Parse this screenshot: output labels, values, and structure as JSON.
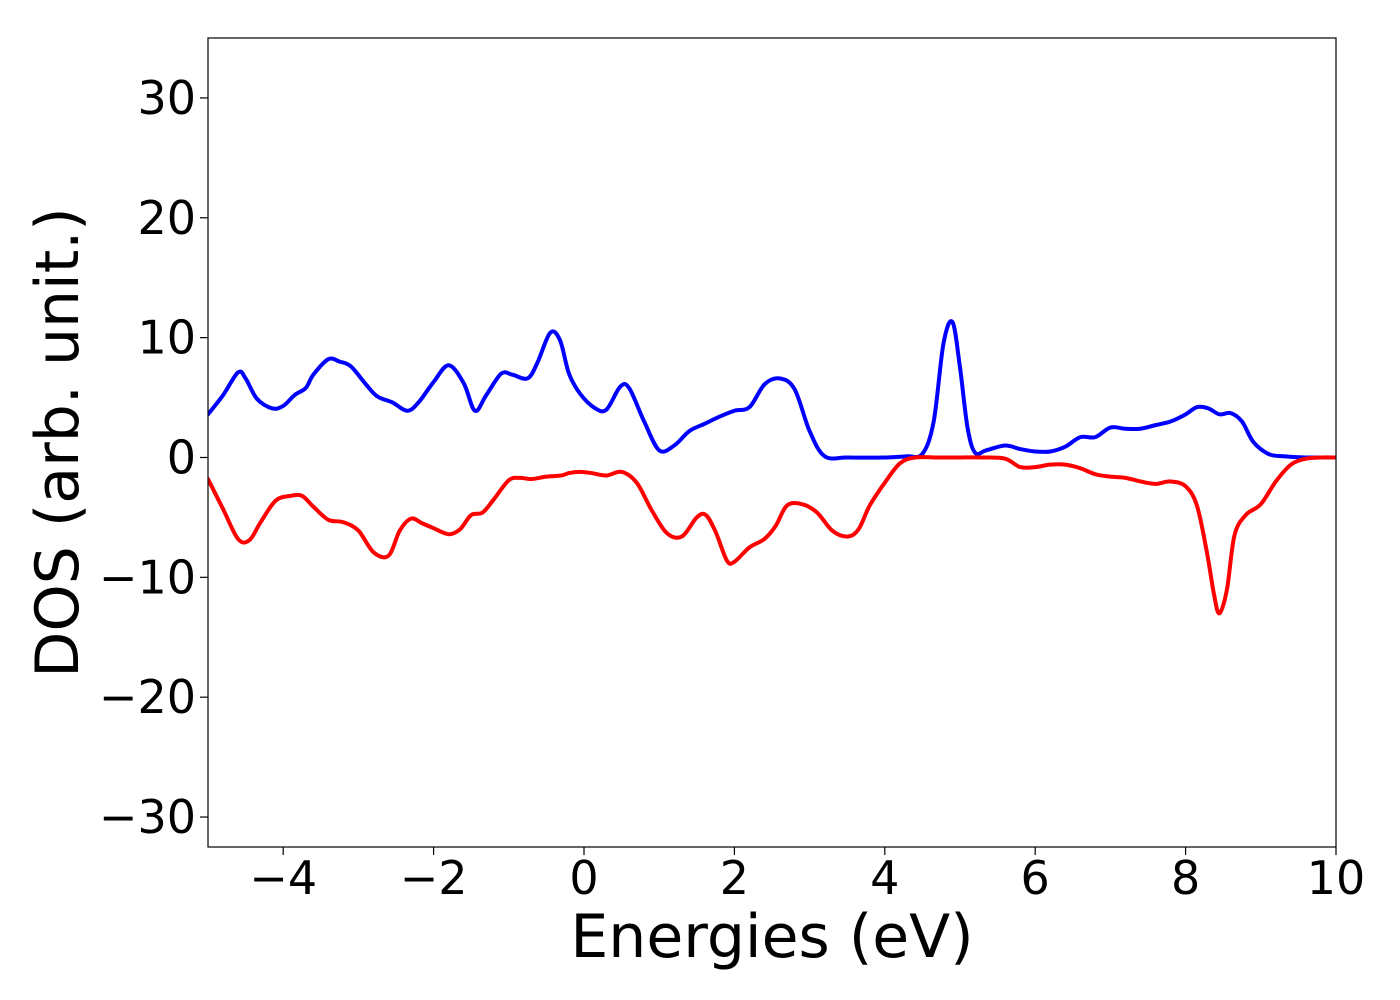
{
  "chart_data": {
    "type": "line",
    "title": "",
    "xlabel": "Energies (eV)",
    "ylabel": "DOS (arb. unit.)",
    "xlim": [
      -5,
      10
    ],
    "ylim": [
      -32.5,
      35
    ],
    "grid": false,
    "x_ticks": [
      -4,
      -2,
      0,
      2,
      4,
      6,
      8,
      10
    ],
    "x_tick_labels": [
      "−4",
      "−2",
      "0",
      "2",
      "4",
      "6",
      "8",
      "10"
    ],
    "y_ticks": [
      30,
      20,
      10,
      0,
      -10,
      -20,
      -30
    ],
    "y_tick_labels": [
      "30",
      "20",
      "10",
      "0",
      "−10",
      "−20",
      "−30"
    ],
    "series": [
      {
        "color": "#0000ff",
        "x": [
          -5.0,
          -4.8,
          -4.6,
          -4.5,
          -4.35,
          -4.15,
          -4.0,
          -3.85,
          -3.7,
          -3.6,
          -3.4,
          -3.25,
          -3.1,
          -2.9,
          -2.75,
          -2.55,
          -2.35,
          -2.2,
          -2.0,
          -1.8,
          -1.6,
          -1.45,
          -1.3,
          -1.1,
          -0.95,
          -0.75,
          -0.62,
          -0.45,
          -0.32,
          -0.2,
          -0.05,
          0.15,
          0.3,
          0.48,
          0.6,
          0.8,
          1.0,
          1.2,
          1.4,
          1.6,
          1.8,
          2.0,
          2.2,
          2.4,
          2.6,
          2.8,
          3.0,
          3.2,
          3.5,
          4.0,
          4.3,
          4.5,
          4.65,
          4.78,
          4.9,
          5.0,
          5.1,
          5.2,
          5.35,
          5.6,
          5.8,
          6.0,
          6.2,
          6.4,
          6.6,
          6.8,
          7.0,
          7.2,
          7.4,
          7.6,
          7.8,
          8.0,
          8.15,
          8.3,
          8.45,
          8.6,
          8.75,
          8.9,
          9.1,
          9.3,
          9.6,
          10.0
        ],
        "values": [
          3.6,
          5.2,
          7.1,
          6.6,
          4.9,
          4.1,
          4.3,
          5.2,
          5.8,
          6.9,
          8.2,
          8.0,
          7.6,
          6.1,
          5.1,
          4.6,
          3.9,
          4.6,
          6.3,
          7.7,
          6.2,
          3.9,
          5.2,
          7.0,
          6.9,
          6.6,
          7.9,
          10.4,
          9.8,
          7.0,
          5.3,
          4.1,
          4.0,
          5.9,
          5.8,
          3.0,
          0.6,
          1.0,
          2.2,
          2.8,
          3.4,
          3.9,
          4.2,
          6.1,
          6.6,
          5.7,
          2.2,
          0.1,
          0.0,
          0.0,
          0.1,
          0.3,
          3.0,
          9.5,
          11.3,
          7.5,
          2.5,
          0.4,
          0.6,
          1.0,
          0.7,
          0.5,
          0.5,
          0.9,
          1.7,
          1.7,
          2.5,
          2.4,
          2.4,
          2.7,
          3.0,
          3.6,
          4.2,
          4.1,
          3.6,
          3.7,
          3.0,
          1.3,
          0.3,
          0.1,
          0.0,
          0.0
        ]
      },
      {
        "color": "#ff0000",
        "x": [
          -5.0,
          -4.8,
          -4.6,
          -4.45,
          -4.3,
          -4.1,
          -3.9,
          -3.75,
          -3.6,
          -3.4,
          -3.2,
          -3.0,
          -2.8,
          -2.6,
          -2.45,
          -2.3,
          -2.15,
          -2.0,
          -1.8,
          -1.65,
          -1.5,
          -1.35,
          -1.2,
          -1.0,
          -0.85,
          -0.7,
          -0.5,
          -0.3,
          -0.2,
          -0.05,
          0.1,
          0.3,
          0.5,
          0.7,
          0.9,
          1.1,
          1.3,
          1.5,
          1.62,
          1.75,
          1.9,
          2.0,
          2.2,
          2.4,
          2.55,
          2.7,
          2.9,
          3.1,
          3.3,
          3.5,
          3.65,
          3.8,
          4.0,
          4.2,
          4.4,
          4.7,
          5.0,
          5.3,
          5.6,
          5.8,
          6.0,
          6.2,
          6.4,
          6.6,
          6.8,
          7.0,
          7.2,
          7.4,
          7.6,
          7.8,
          8.0,
          8.15,
          8.28,
          8.38,
          8.45,
          8.55,
          8.65,
          8.8,
          9.0,
          9.2,
          9.4,
          9.6,
          9.8,
          10.0
        ],
        "values": [
          -1.8,
          -4.3,
          -6.8,
          -6.9,
          -5.4,
          -3.6,
          -3.2,
          -3.2,
          -4.1,
          -5.2,
          -5.4,
          -6.1,
          -7.9,
          -8.2,
          -6.1,
          -5.1,
          -5.5,
          -5.9,
          -6.4,
          -6.0,
          -4.8,
          -4.6,
          -3.5,
          -1.9,
          -1.7,
          -1.8,
          -1.6,
          -1.5,
          -1.3,
          -1.2,
          -1.3,
          -1.5,
          -1.2,
          -2.1,
          -4.4,
          -6.3,
          -6.6,
          -5.0,
          -4.8,
          -6.2,
          -8.6,
          -8.7,
          -7.5,
          -6.8,
          -5.7,
          -4.0,
          -3.9,
          -4.6,
          -6.1,
          -6.6,
          -6.0,
          -4.0,
          -2.1,
          -0.5,
          -0.0,
          -0.0,
          -0.0,
          -0.0,
          -0.1,
          -0.8,
          -0.8,
          -0.6,
          -0.6,
          -0.9,
          -1.4,
          -1.6,
          -1.7,
          -2.0,
          -2.2,
          -2.0,
          -2.4,
          -4.0,
          -7.8,
          -11.5,
          -13.0,
          -11.0,
          -6.5,
          -4.8,
          -3.9,
          -2.0,
          -0.6,
          -0.1,
          -0.0,
          -0.0
        ]
      }
    ]
  }
}
